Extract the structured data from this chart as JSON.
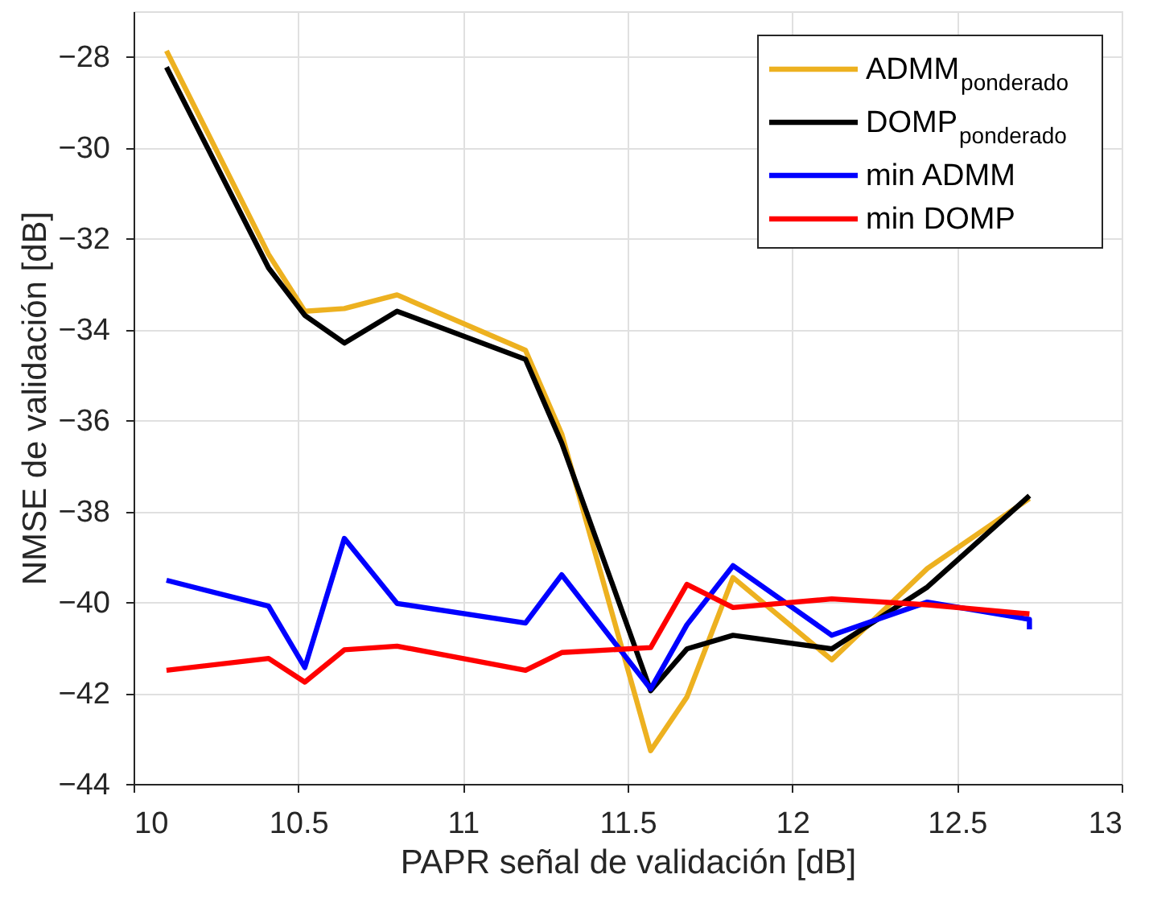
{
  "chart_data": {
    "type": "line",
    "xlabel": "PAPR señal de validación [dB]",
    "ylabel": "NMSE de validación [dB]",
    "x": [
      10.1,
      10.41,
      10.52,
      10.64,
      10.8,
      11.19,
      11.3,
      11.57,
      11.68,
      11.82,
      12.12,
      12.41,
      12.72
    ],
    "series": [
      {
        "name": "ADMM$_{ponderado}$",
        "color": "#edb120",
        "values": [
          -27.87,
          -32.35,
          -33.6,
          -33.54,
          -33.24,
          -34.46,
          -36.3,
          -43.27,
          -42.09,
          -39.46,
          -41.27,
          -39.26,
          -37.72
        ]
      },
      {
        "name": "DOMP$_{ponderado}$",
        "color": "#000000",
        "values": [
          -28.23,
          -32.65,
          -33.69,
          -34.3,
          -33.6,
          -34.66,
          -36.5,
          -41.95,
          -41.03,
          -40.73,
          -41.03,
          -39.67,
          -37.66
        ]
      },
      {
        "name": "min ADMM",
        "color": "#0000ff",
        "x": [
          10.1,
          10.41,
          10.52,
          10.64,
          10.8,
          11.19,
          11.3,
          11.57,
          11.68,
          11.82,
          12.12,
          12.41,
          12.72,
          12.72
        ],
        "values": [
          -39.52,
          -40.09,
          -41.44,
          -38.6,
          -40.03,
          -40.46,
          -39.4,
          -41.91,
          -40.5,
          -39.2,
          -40.73,
          -40.0,
          -40.38,
          -40.6
        ]
      },
      {
        "name": "min DOMP",
        "color": "#ff0000",
        "values": [
          -41.5,
          -41.24,
          -41.76,
          -41.05,
          -40.97,
          -41.5,
          -41.11,
          -41.0,
          -39.61,
          -40.12,
          -39.93,
          -40.06,
          -40.26
        ]
      }
    ],
    "xlim": [
      10,
      13
    ],
    "xticks": [
      10,
      10.5,
      11,
      11.5,
      12,
      12.5,
      13
    ],
    "ylim": [
      -44,
      -27
    ],
    "yticks": [
      -44,
      -42,
      -40,
      -38,
      -36,
      -34,
      -32,
      -30,
      -28
    ],
    "grid": true,
    "legend": "top right",
    "line_style": "solid",
    "marker": "none"
  }
}
